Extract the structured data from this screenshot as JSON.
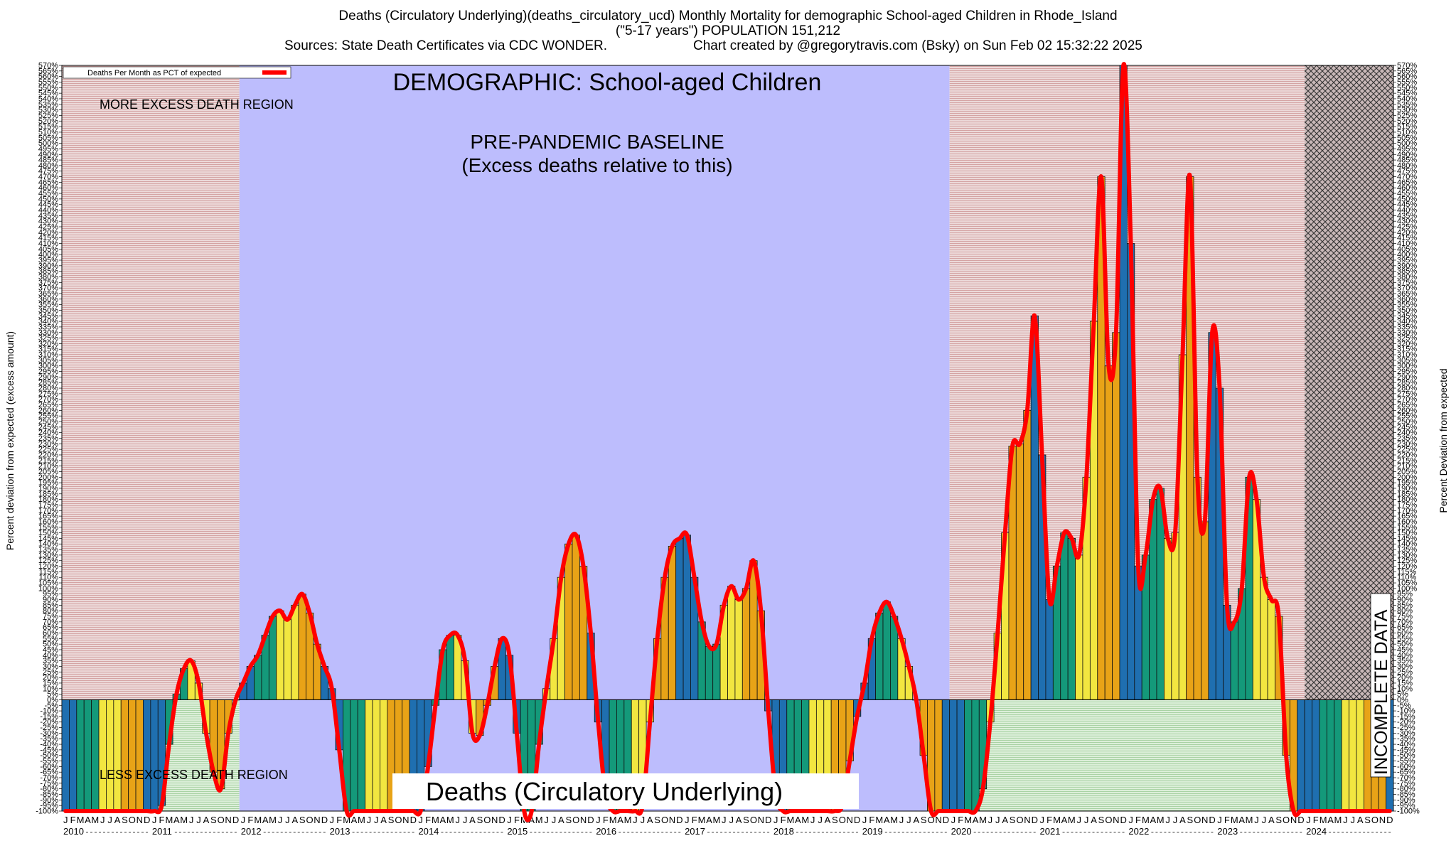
{
  "header": {
    "line1": "Deaths (Circulatory Underlying)(deaths_circulatory_ucd) Monthly Mortality for demographic School-aged Children in Rhode_Island",
    "line2": "(\"5-17 years\") POPULATION 151,212",
    "line3_left": "Sources: State Death Certificates via CDC WONDER.",
    "line3_right": "Chart created by @gregorytravis.com (Bsky) on Sun Feb 02 15:32:22 2025"
  },
  "chart_data": {
    "type": "bar",
    "title": "DEMOGRAPHIC: School-aged Children",
    "bottom_label": "Deaths (Circulatory Underlying)",
    "ylabel_left": "Percent deviation from expected (excess amount)",
    "ylabel_right": "Percent Deviation from expected",
    "legend": {
      "label": "Deaths Per Month as PCT of expected",
      "color": "#ff0000",
      "placement": "top-left"
    },
    "annotations": {
      "more_excess": "MORE EXCESS DEATH REGION",
      "less_excess": "LESS EXCESS DEATH REGION",
      "baseline_1": "PRE-PANDEMIC BASELINE",
      "baseline_2": "(Excess deaths relative to this)",
      "incomplete": "INCOMPLETE DATA"
    },
    "ylim": [
      -100,
      570
    ],
    "ytick_step": 5,
    "ytick_suffix": "%",
    "month_letters": [
      "J",
      "F",
      "M",
      "A",
      "M",
      "J",
      "J",
      "A",
      "S",
      "O",
      "N",
      "D"
    ],
    "years": [
      "2010",
      "2011",
      "2012",
      "2013",
      "2014",
      "2015",
      "2016",
      "2017",
      "2018",
      "2019",
      "2020",
      "2021",
      "2022",
      "2023",
      "2024"
    ],
    "baseline_months": [
      24,
      120
    ],
    "incomplete_from_month": 168,
    "season_colors": {
      "winter": "#1f6fb0",
      "spring": "#14997a",
      "summer": "#f2e640",
      "fall": "#e8a317"
    },
    "region_colors": {
      "more_excess": "#e6c8c8",
      "less_excess": "#cfe6cc",
      "baseline": "#bdbdfd",
      "line": "#ff0000"
    },
    "values": [
      -100,
      -100,
      -100,
      -100,
      -100,
      -100,
      -100,
      -100,
      -100,
      -100,
      -100,
      -100,
      -100,
      -95,
      -40,
      5,
      28,
      35,
      15,
      -30,
      -65,
      -80,
      -30,
      0,
      15,
      30,
      40,
      58,
      75,
      80,
      72,
      85,
      95,
      78,
      50,
      30,
      10,
      -45,
      -100,
      -100,
      -100,
      -100,
      -100,
      -100,
      -100,
      -100,
      -100,
      -100,
      -100,
      -60,
      -5,
      45,
      58,
      58,
      35,
      -30,
      -32,
      -5,
      30,
      55,
      40,
      -30,
      -100,
      -100,
      -40,
      10,
      55,
      110,
      140,
      148,
      120,
      60,
      -20,
      -85,
      -100,
      -100,
      -100,
      -100,
      -95,
      -20,
      55,
      110,
      138,
      145,
      148,
      110,
      70,
      48,
      50,
      85,
      102,
      90,
      100,
      125,
      80,
      -10,
      -85,
      -100,
      -100,
      -100,
      -100,
      -100,
      -100,
      -100,
      -100,
      -95,
      -55,
      -15,
      15,
      55,
      78,
      88,
      75,
      55,
      30,
      0,
      -50,
      -100,
      -100,
      -100,
      -100,
      -100,
      -100,
      -100,
      -80,
      -20,
      60,
      150,
      228,
      230,
      260,
      345,
      220,
      90,
      120,
      150,
      145,
      130,
      200,
      340,
      470,
      300,
      330,
      570,
      410,
      120,
      130,
      180,
      190,
      145,
      150,
      310,
      470,
      200,
      160,
      330,
      280,
      85,
      70,
      100,
      200,
      180,
      110,
      90,
      75,
      -50,
      -100,
      -100,
      -100,
      -100,
      -100,
      -100,
      -100,
      -100,
      -100,
      -100,
      -100,
      -100,
      -100,
      -100
    ]
  }
}
